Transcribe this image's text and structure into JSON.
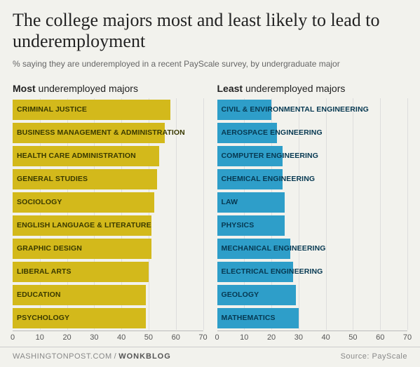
{
  "title": "The college majors most and least likely to lead to underemployment",
  "title_fontsize": 26,
  "subtitle": "% saying they are underemployed in a recent PayScale survey, by undergraduate major",
  "subtitle_fontsize": 12,
  "background_color": "#f2f2ed",
  "text_color": "#222",
  "grid_color": "#dddddd",
  "axis_text_color": "#555555",
  "xlim": [
    0,
    70
  ],
  "xtick_step": 10,
  "footer": {
    "left_brand": "WASHINGTONPOST.COM",
    "left_blog": "WONKBLOG",
    "right": "Source: PayScale",
    "separator": "/"
  },
  "columns": [
    {
      "heading_bold": "Most",
      "heading_rest": " underemployed majors",
      "bar_color": "#d3b91b",
      "text_color": "#3a3a00",
      "bars": [
        {
          "label": "CRIMINAL JUSTICE",
          "value": 58
        },
        {
          "label": "BUSINESS MANAGEMENT & ADMINISTRATION",
          "value": 56
        },
        {
          "label": "HEALTH CARE ADMINISTRATION",
          "value": 54
        },
        {
          "label": "GENERAL STUDIES",
          "value": 53
        },
        {
          "label": "SOCIOLOGY",
          "value": 52
        },
        {
          "label": "ENGLISH LANGUAGE & LITERATURE",
          "value": 51
        },
        {
          "label": "GRAPHIC DESIGN",
          "value": 51
        },
        {
          "label": "LIBERAL ARTS",
          "value": 50
        },
        {
          "label": "EDUCATION",
          "value": 49
        },
        {
          "label": "PSYCHOLOGY",
          "value": 49
        }
      ]
    },
    {
      "heading_bold": "Least",
      "heading_rest": " underemployed majors",
      "bar_color": "#2e9ec9",
      "text_color": "#063851",
      "bars": [
        {
          "label": "CIVIL & ENVIRONMENTAL ENGINEERING",
          "value": 20
        },
        {
          "label": "AEROSPACE ENGINEERING",
          "value": 22
        },
        {
          "label": "COMPUTER ENGINEERING",
          "value": 24
        },
        {
          "label": "CHEMICAL ENGINEERING",
          "value": 24
        },
        {
          "label": "LAW",
          "value": 25
        },
        {
          "label": "PHYSICS",
          "value": 25
        },
        {
          "label": "MECHANICAL ENGINEERING",
          "value": 27
        },
        {
          "label": "ELECTRICAL ENGINEERING",
          "value": 28
        },
        {
          "label": "GEOLOGY",
          "value": 29
        },
        {
          "label": "MATHEMATICS",
          "value": 30
        }
      ]
    }
  ]
}
